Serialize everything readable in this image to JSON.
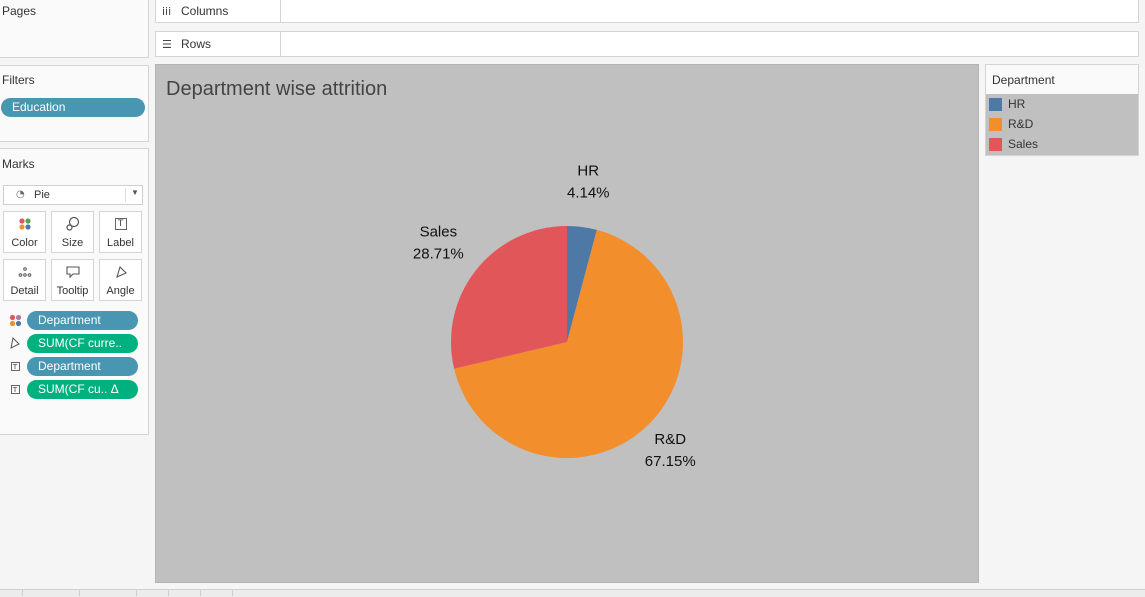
{
  "left_pane": {
    "pages_title": "Pages",
    "filters_title": "Filters",
    "filter_pills": [
      "Education"
    ],
    "marks_title": "Marks",
    "mark_type": "Pie",
    "mark_buttons": [
      {
        "label": "Color",
        "icon": "color-dots-icon"
      },
      {
        "label": "Size",
        "icon": "size-icon"
      },
      {
        "label": "Label",
        "icon": "label-icon"
      },
      {
        "label": "Detail",
        "icon": "detail-dots-icon"
      },
      {
        "label": "Tooltip",
        "icon": "tooltip-icon"
      },
      {
        "label": "Angle",
        "icon": "angle-icon"
      }
    ],
    "encodings": [
      {
        "icon": "color-dots-icon",
        "label": "Department",
        "kind": "dimension"
      },
      {
        "icon": "angle-icon",
        "label": "SUM(CF curre..",
        "kind": "measure"
      },
      {
        "icon": "label-icon",
        "label": "Department",
        "kind": "dimension"
      },
      {
        "icon": "label-icon",
        "label": "SUM(CF cu..  Δ",
        "kind": "measure"
      }
    ]
  },
  "shelves": {
    "columns_label": "Columns",
    "rows_label": "Rows"
  },
  "chart_data": {
    "type": "pie",
    "title": "Department wise attrition",
    "categories": [
      "HR",
      "R&D",
      "Sales"
    ],
    "values": [
      4.14,
      67.15,
      28.71
    ],
    "labels": [
      "4.14%",
      "67.15%",
      "28.71%"
    ],
    "colors": [
      "#4e79a7",
      "#f28e2b",
      "#e15759"
    ],
    "legend_position": "right"
  },
  "legend": {
    "title": "Department",
    "items": [
      {
        "label": "HR",
        "color": "#4e79a7"
      },
      {
        "label": "R&D",
        "color": "#f28e2b"
      },
      {
        "label": "Sales",
        "color": "#e15759"
      }
    ]
  }
}
